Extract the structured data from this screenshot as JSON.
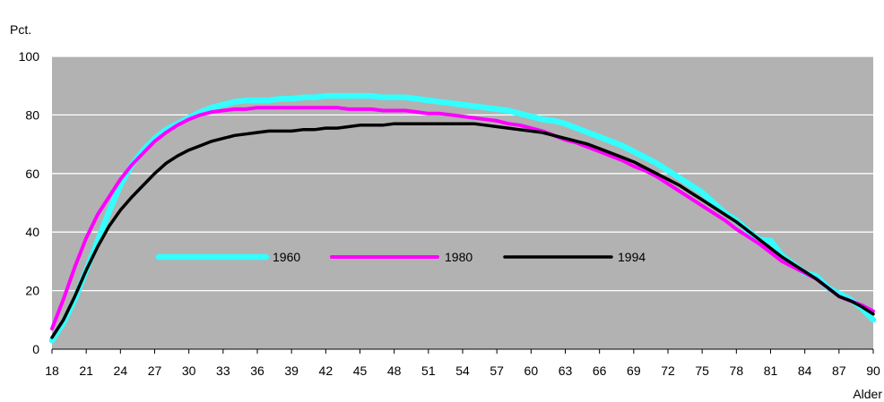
{
  "chart_data": {
    "type": "line",
    "title": "",
    "ylabel": "Pct.",
    "xlabel": "Alder",
    "xlim": [
      18,
      90
    ],
    "ylim": [
      0,
      100
    ],
    "yticks": [
      0,
      20,
      40,
      60,
      80,
      100
    ],
    "xticks": [
      18,
      21,
      24,
      27,
      30,
      33,
      36,
      39,
      42,
      45,
      48,
      51,
      54,
      57,
      60,
      63,
      66,
      69,
      72,
      75,
      78,
      81,
      84,
      87,
      90
    ],
    "grid": "horizontal",
    "legend": "inside-center-left",
    "plot_background": "#b2b2b2",
    "gridline_color": "#ffffff",
    "series": [
      {
        "name": "1960",
        "color": "#33ffff",
        "x": [
          18,
          19,
          20,
          21,
          22,
          23,
          24,
          25,
          26,
          27,
          28,
          29,
          30,
          31,
          32,
          33,
          34,
          35,
          36,
          37,
          38,
          39,
          40,
          41,
          42,
          43,
          44,
          45,
          46,
          47,
          48,
          49,
          50,
          51,
          52,
          53,
          54,
          55,
          56,
          57,
          58,
          59,
          60,
          61,
          62,
          63,
          64,
          65,
          66,
          67,
          68,
          69,
          70,
          71,
          72,
          73,
          74,
          75,
          76,
          77,
          78,
          79,
          80,
          81,
          82,
          83,
          84,
          85,
          86,
          87,
          88,
          89,
          90
        ],
        "values": [
          3,
          9,
          17,
          27,
          37,
          47,
          56,
          63,
          68,
          72,
          75,
          77,
          79,
          81,
          82.5,
          83.5,
          84.5,
          85,
          85,
          85,
          85.5,
          85.5,
          86,
          86,
          86.5,
          86.5,
          86.5,
          86.5,
          86.5,
          86,
          86,
          86,
          85.5,
          85,
          84.5,
          84,
          83.5,
          83,
          82.5,
          82,
          81.5,
          80.5,
          79.5,
          78.5,
          78,
          77,
          75.5,
          74,
          72.5,
          71,
          69.5,
          67.5,
          65.5,
          63.5,
          61,
          58.5,
          56,
          53.5,
          50,
          46.5,
          44,
          40.5,
          37.5,
          37,
          32,
          29,
          26,
          25,
          21,
          19,
          17,
          14,
          10
        ]
      },
      {
        "name": "1980",
        "color": "#ff00ff",
        "x": [
          18,
          19,
          20,
          21,
          22,
          23,
          24,
          25,
          26,
          27,
          28,
          29,
          30,
          31,
          32,
          33,
          34,
          35,
          36,
          37,
          38,
          39,
          40,
          41,
          42,
          43,
          44,
          45,
          46,
          47,
          48,
          49,
          50,
          51,
          52,
          53,
          54,
          55,
          56,
          57,
          58,
          59,
          60,
          61,
          62,
          63,
          64,
          65,
          66,
          67,
          68,
          69,
          70,
          71,
          72,
          73,
          74,
          75,
          76,
          77,
          78,
          79,
          80,
          81,
          82,
          83,
          84,
          85,
          86,
          87,
          88,
          89,
          90
        ],
        "values": [
          7,
          17,
          28,
          38,
          46,
          52,
          58,
          63,
          67,
          71,
          74,
          76.5,
          78.5,
          80,
          81,
          81.5,
          82,
          82,
          82.5,
          82.5,
          82.5,
          82.5,
          82.5,
          82.5,
          82.5,
          82.5,
          82,
          82,
          82,
          81.5,
          81.5,
          81.5,
          81,
          80.5,
          80.5,
          80,
          79.5,
          79,
          78.5,
          78,
          77,
          76.5,
          75.5,
          74.5,
          73,
          71.5,
          70.5,
          69,
          67.5,
          66,
          64.5,
          62.5,
          61,
          59,
          56.5,
          54,
          51.5,
          49,
          46.5,
          44,
          41,
          38.5,
          36,
          33,
          30,
          28,
          26,
          24,
          21,
          18,
          16.5,
          15,
          13
        ]
      },
      {
        "name": "1994",
        "color": "#000000",
        "x": [
          18,
          19,
          20,
          21,
          22,
          23,
          24,
          25,
          26,
          27,
          28,
          29,
          30,
          31,
          32,
          33,
          34,
          35,
          36,
          37,
          38,
          39,
          40,
          41,
          42,
          43,
          44,
          45,
          46,
          47,
          48,
          49,
          50,
          51,
          52,
          53,
          54,
          55,
          56,
          57,
          58,
          59,
          60,
          61,
          62,
          63,
          64,
          65,
          66,
          67,
          68,
          69,
          70,
          71,
          72,
          73,
          74,
          75,
          76,
          77,
          78,
          79,
          80,
          81,
          82,
          83,
          84,
          85,
          86,
          87,
          88,
          89,
          90
        ],
        "values": [
          4,
          10,
          18,
          27,
          35,
          42,
          47.5,
          52,
          56,
          60,
          63.5,
          66,
          68,
          69.5,
          71,
          72,
          73,
          73.5,
          74,
          74.5,
          74.5,
          74.5,
          75,
          75,
          75.5,
          75.5,
          76,
          76.5,
          76.5,
          76.5,
          77,
          77,
          77,
          77,
          77,
          77,
          77,
          77,
          76.5,
          76,
          75.5,
          75,
          74.5,
          74,
          73,
          72,
          71,
          70,
          68.5,
          67,
          65.5,
          64,
          62,
          60,
          58,
          56,
          53.5,
          51,
          48.5,
          46,
          43.5,
          40.5,
          37.5,
          34.5,
          31.5,
          29,
          26.5,
          24,
          21,
          18,
          16.5,
          14.5,
          12
        ]
      }
    ]
  }
}
